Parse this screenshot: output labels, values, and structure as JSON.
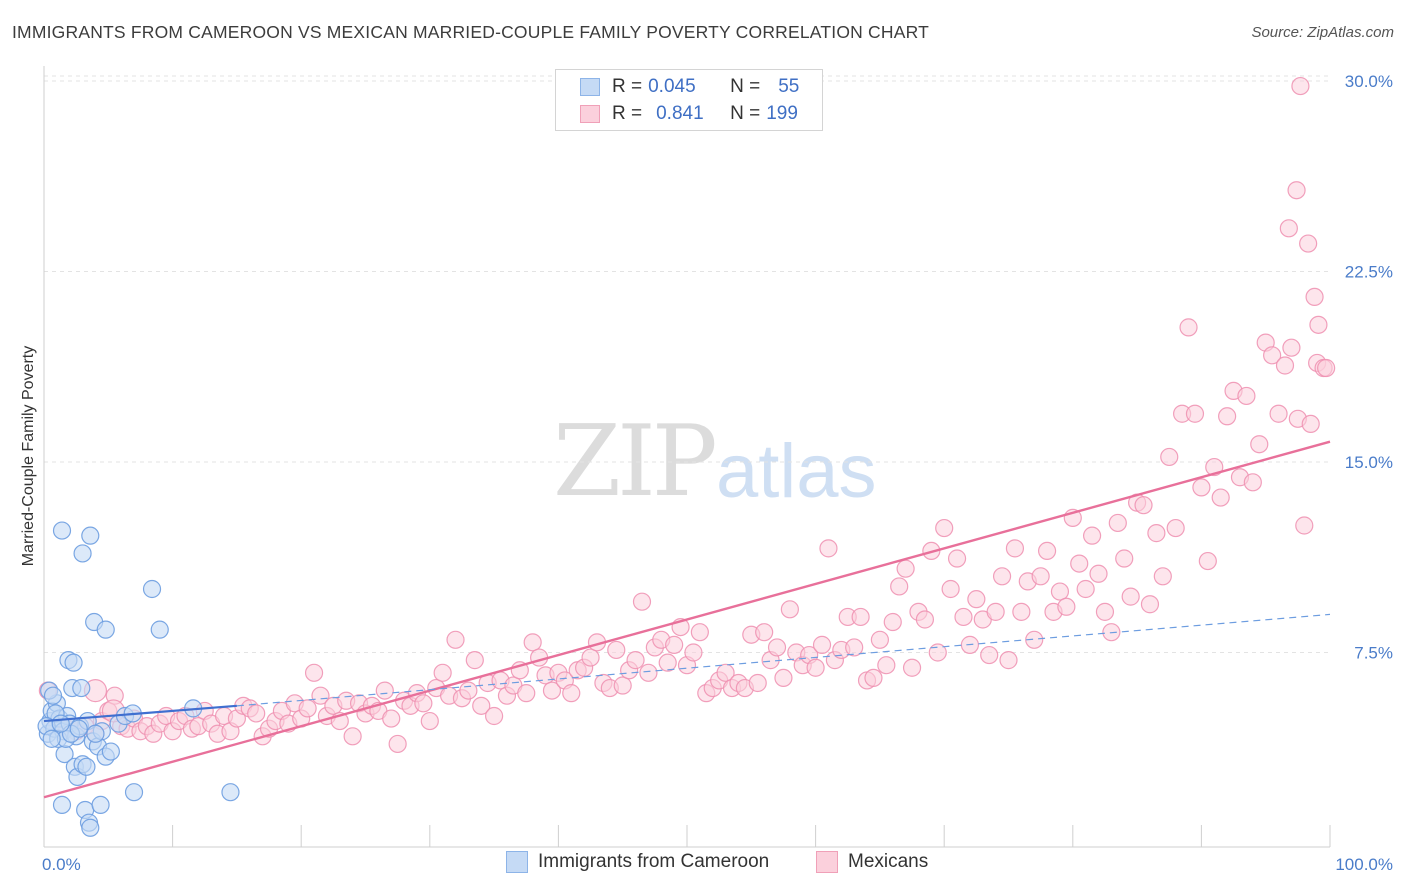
{
  "header": {
    "title": "IMMIGRANTS FROM CAMEROON VS MEXICAN MARRIED-COUPLE FAMILY POVERTY CORRELATION CHART",
    "source": "Source: ZipAtlas.com"
  },
  "watermark": {
    "zip": "ZIP",
    "atlas": "atlas"
  },
  "legend": {
    "rows": [
      {
        "r_label": "R =",
        "r_value": "0.045",
        "n_label": "N =",
        "n_value": "55",
        "color": "#8db4e8",
        "fill": "#c5daf5"
      },
      {
        "r_label": "R =",
        "r_value": "0.841",
        "n_label": "N =",
        "n_value": "199",
        "color": "#f0a0b8",
        "fill": "#fbd0dc"
      }
    ]
  },
  "bottom_legend": {
    "items": [
      {
        "label": "Immigrants from Cameroon",
        "color": "#8db4e8",
        "fill": "#c5daf5"
      },
      {
        "label": "Mexicans",
        "color": "#f0a0b8",
        "fill": "#fbd0dc"
      }
    ]
  },
  "chart_data": {
    "type": "scatter",
    "title": "IMMIGRANTS FROM CAMEROON VS MEXICAN MARRIED-COUPLE FAMILY POVERTY CORRELATION CHART",
    "ylabel": "Married-Couple Family Poverty",
    "xlabel": "",
    "xlim": [
      0,
      100
    ],
    "ylim": [
      0,
      30.5
    ],
    "x_tick_labels": [
      "0.0%",
      "100.0%"
    ],
    "y_ticks": [
      7.5,
      15.0,
      22.5,
      30.0
    ],
    "y_tick_labels": [
      "7.5%",
      "15.0%",
      "22.5%",
      "30.0%"
    ],
    "grid": true,
    "legend_position": "top-center",
    "series": [
      {
        "name": "Immigrants from Cameroon",
        "color": "#6d9de0",
        "fill": "#c5daf5",
        "trend": {
          "x": [
            0,
            15
          ],
          "y": [
            4.8,
            5.4
          ],
          "style": "solid"
        },
        "trend_extension": {
          "x": [
            15,
            100
          ],
          "y": [
            5.4,
            9.0
          ],
          "style": "dashed"
        },
        "points": [
          [
            0.3,
            4.3
          ],
          [
            0.5,
            4.8
          ],
          [
            0.6,
            5.2
          ],
          [
            0.8,
            4.5
          ],
          [
            1.0,
            5.5
          ],
          [
            0.4,
            6.0
          ],
          [
            1.2,
            4.9
          ],
          [
            1.5,
            4.4
          ],
          [
            0.7,
            5.8
          ],
          [
            1.8,
            5.0
          ],
          [
            2.0,
            4.7
          ],
          [
            2.2,
            6.1
          ],
          [
            2.5,
            4.2
          ],
          [
            2.8,
            4.6
          ],
          [
            1.6,
            3.5
          ],
          [
            1.9,
            7.2
          ],
          [
            2.3,
            7.1
          ],
          [
            2.4,
            3.0
          ],
          [
            2.6,
            2.6
          ],
          [
            3.0,
            3.1
          ],
          [
            3.2,
            1.3
          ],
          [
            3.5,
            0.8
          ],
          [
            3.6,
            0.6
          ],
          [
            1.4,
            1.5
          ],
          [
            1.4,
            12.3
          ],
          [
            3.0,
            11.4
          ],
          [
            3.6,
            12.1
          ],
          [
            3.9,
            8.7
          ],
          [
            4.8,
            8.4
          ],
          [
            8.4,
            10.0
          ],
          [
            9.0,
            8.4
          ],
          [
            3.8,
            4.0
          ],
          [
            4.2,
            3.8
          ],
          [
            4.5,
            4.4
          ],
          [
            4.8,
            3.4
          ],
          [
            5.2,
            3.6
          ],
          [
            3.3,
            3.0
          ],
          [
            2.9,
            6.1
          ],
          [
            0.9,
            5.1
          ],
          [
            1.1,
            4.1
          ],
          [
            1.7,
            4.1
          ],
          [
            2.1,
            4.3
          ],
          [
            3.4,
            4.8
          ],
          [
            4.4,
            1.5
          ],
          [
            5.8,
            4.7
          ],
          [
            7.0,
            2.0
          ],
          [
            11.6,
            5.3
          ],
          [
            14.5,
            2.0
          ],
          [
            6.3,
            5.0
          ],
          [
            0.2,
            4.6
          ],
          [
            0.6,
            4.1
          ],
          [
            1.3,
            4.7
          ],
          [
            2.7,
            4.5
          ],
          [
            4.0,
            4.3
          ],
          [
            6.9,
            5.1
          ]
        ]
      },
      {
        "name": "Mexicans",
        "color": "#ef8fb0",
        "fill": "#fbd0dc",
        "trend": {
          "x": [
            0,
            100
          ],
          "y": [
            1.8,
            15.8
          ],
          "style": "solid"
        },
        "points": [
          [
            0.3,
            6.0
          ],
          [
            1.0,
            4.7
          ],
          [
            1.8,
            4.5
          ],
          [
            2.5,
            4.4
          ],
          [
            3.2,
            4.6
          ],
          [
            4.0,
            4.3
          ],
          [
            4.5,
            4.8
          ],
          [
            6.0,
            4.6
          ],
          [
            5.0,
            5.2
          ],
          [
            5.5,
            5.8
          ],
          [
            6.5,
            4.5
          ],
          [
            7.0,
            4.9
          ],
          [
            7.5,
            4.4
          ],
          [
            8.0,
            4.6
          ],
          [
            8.5,
            4.3
          ],
          [
            9.0,
            4.7
          ],
          [
            9.5,
            5.0
          ],
          [
            10.0,
            4.4
          ],
          [
            10.5,
            4.8
          ],
          [
            11.0,
            5.0
          ],
          [
            11.5,
            4.5
          ],
          [
            12.0,
            4.6
          ],
          [
            12.5,
            5.2
          ],
          [
            13.0,
            4.7
          ],
          [
            13.5,
            4.3
          ],
          [
            14.0,
            5.0
          ],
          [
            14.5,
            4.4
          ],
          [
            15.0,
            4.9
          ],
          [
            15.5,
            5.4
          ],
          [
            16.0,
            5.3
          ],
          [
            16.5,
            5.1
          ],
          [
            17.0,
            4.2
          ],
          [
            17.5,
            4.5
          ],
          [
            18.0,
            4.8
          ],
          [
            18.5,
            5.2
          ],
          [
            19.0,
            4.7
          ],
          [
            19.5,
            5.5
          ],
          [
            20.0,
            4.9
          ],
          [
            20.5,
            5.3
          ],
          [
            21.0,
            6.7
          ],
          [
            21.5,
            5.8
          ],
          [
            22.0,
            5.0
          ],
          [
            22.5,
            5.4
          ],
          [
            23.0,
            4.8
          ],
          [
            23.5,
            5.6
          ],
          [
            24.0,
            4.2
          ],
          [
            24.5,
            5.5
          ],
          [
            25.0,
            5.1
          ],
          [
            25.5,
            5.4
          ],
          [
            26.0,
            5.2
          ],
          [
            26.5,
            6.0
          ],
          [
            27.0,
            4.9
          ],
          [
            27.5,
            3.9
          ],
          [
            28.0,
            5.6
          ],
          [
            28.5,
            5.4
          ],
          [
            29.0,
            5.9
          ],
          [
            29.5,
            5.5
          ],
          [
            30.0,
            4.8
          ],
          [
            30.5,
            6.1
          ],
          [
            31.0,
            6.7
          ],
          [
            31.5,
            5.8
          ],
          [
            32.0,
            8.0
          ],
          [
            32.5,
            5.7
          ],
          [
            33.0,
            6.0
          ],
          [
            33.5,
            7.2
          ],
          [
            34.0,
            5.4
          ],
          [
            34.5,
            6.3
          ],
          [
            35.0,
            5.0
          ],
          [
            35.5,
            6.4
          ],
          [
            36.0,
            5.8
          ],
          [
            36.5,
            6.2
          ],
          [
            37.0,
            6.8
          ],
          [
            37.5,
            5.9
          ],
          [
            38.0,
            7.9
          ],
          [
            38.5,
            7.3
          ],
          [
            39.0,
            6.6
          ],
          [
            39.5,
            6.0
          ],
          [
            40.0,
            6.7
          ],
          [
            40.5,
            6.4
          ],
          [
            41.0,
            5.9
          ],
          [
            41.5,
            6.8
          ],
          [
            42.0,
            6.9
          ],
          [
            42.5,
            7.3
          ],
          [
            43.0,
            7.9
          ],
          [
            43.5,
            6.3
          ],
          [
            44.0,
            6.1
          ],
          [
            44.5,
            7.6
          ],
          [
            45.0,
            6.2
          ],
          [
            45.5,
            6.8
          ],
          [
            46.0,
            7.2
          ],
          [
            46.5,
            9.5
          ],
          [
            47.0,
            6.7
          ],
          [
            47.5,
            7.7
          ],
          [
            48.0,
            8.0
          ],
          [
            48.5,
            7.1
          ],
          [
            49.0,
            7.8
          ],
          [
            49.5,
            8.5
          ],
          [
            50.0,
            7.0
          ],
          [
            50.5,
            7.5
          ],
          [
            51.0,
            8.3
          ],
          [
            51.5,
            5.9
          ],
          [
            52.0,
            6.1
          ],
          [
            52.5,
            6.4
          ],
          [
            53.0,
            6.7
          ],
          [
            53.5,
            6.1
          ],
          [
            54.0,
            6.3
          ],
          [
            54.5,
            6.1
          ],
          [
            55.0,
            8.2
          ],
          [
            55.5,
            6.3
          ],
          [
            56.0,
            8.3
          ],
          [
            56.5,
            7.2
          ],
          [
            57.0,
            7.7
          ],
          [
            57.5,
            6.5
          ],
          [
            58.0,
            9.2
          ],
          [
            58.5,
            7.5
          ],
          [
            59.0,
            7.0
          ],
          [
            59.5,
            7.4
          ],
          [
            60.0,
            6.9
          ],
          [
            60.5,
            7.8
          ],
          [
            61.0,
            11.6
          ],
          [
            61.5,
            7.2
          ],
          [
            62.0,
            7.6
          ],
          [
            62.5,
            8.9
          ],
          [
            63.0,
            7.7
          ],
          [
            63.5,
            8.9
          ],
          [
            64.0,
            6.4
          ],
          [
            64.5,
            6.5
          ],
          [
            65.0,
            8.0
          ],
          [
            65.5,
            7.0
          ],
          [
            66.0,
            8.7
          ],
          [
            66.5,
            10.1
          ],
          [
            67.0,
            10.8
          ],
          [
            67.5,
            6.9
          ],
          [
            68.0,
            9.1
          ],
          [
            68.5,
            8.8
          ],
          [
            69.0,
            11.5
          ],
          [
            69.5,
            7.5
          ],
          [
            70.0,
            12.4
          ],
          [
            70.5,
            10.0
          ],
          [
            71.0,
            11.2
          ],
          [
            71.5,
            8.9
          ],
          [
            72.0,
            7.8
          ],
          [
            72.5,
            9.6
          ],
          [
            73.0,
            8.8
          ],
          [
            73.5,
            7.4
          ],
          [
            74.0,
            9.1
          ],
          [
            74.5,
            10.5
          ],
          [
            75.0,
            7.2
          ],
          [
            75.5,
            11.6
          ],
          [
            76.0,
            9.1
          ],
          [
            76.5,
            10.3
          ],
          [
            77.0,
            8.0
          ],
          [
            77.5,
            10.5
          ],
          [
            78.0,
            11.5
          ],
          [
            78.5,
            9.1
          ],
          [
            79.0,
            9.9
          ],
          [
            79.5,
            9.3
          ],
          [
            80.0,
            12.8
          ],
          [
            80.5,
            11.0
          ],
          [
            81.0,
            10.0
          ],
          [
            81.5,
            12.1
          ],
          [
            82.0,
            10.6
          ],
          [
            82.5,
            9.1
          ],
          [
            83.0,
            8.3
          ],
          [
            83.5,
            12.6
          ],
          [
            84.0,
            11.2
          ],
          [
            84.5,
            9.7
          ],
          [
            85.0,
            13.4
          ],
          [
            85.5,
            13.3
          ],
          [
            86.0,
            9.4
          ],
          [
            86.5,
            12.2
          ],
          [
            87.0,
            10.5
          ],
          [
            87.5,
            15.2
          ],
          [
            88.0,
            12.4
          ],
          [
            88.5,
            16.9
          ],
          [
            89.0,
            20.3
          ],
          [
            89.5,
            16.9
          ],
          [
            90.0,
            14.0
          ],
          [
            90.5,
            11.1
          ],
          [
            91.0,
            14.8
          ],
          [
            91.5,
            13.6
          ],
          [
            92.0,
            16.8
          ],
          [
            92.5,
            17.8
          ],
          [
            93.0,
            14.4
          ],
          [
            93.5,
            17.6
          ],
          [
            94.0,
            14.2
          ],
          [
            94.5,
            15.7
          ],
          [
            95.0,
            19.7
          ],
          [
            95.5,
            19.2
          ],
          [
            96.0,
            16.9
          ],
          [
            96.5,
            18.8
          ],
          [
            97.0,
            19.5
          ],
          [
            97.5,
            16.7
          ],
          [
            98.0,
            12.5
          ],
          [
            98.5,
            16.5
          ],
          [
            99.0,
            18.9
          ],
          [
            99.5,
            18.7
          ]
        ],
        "high_points": [
          [
            97.4,
            25.7
          ],
          [
            96.8,
            24.2
          ],
          [
            98.3,
            23.6
          ],
          [
            98.8,
            21.5
          ],
          [
            99.1,
            20.4
          ],
          [
            99.7,
            18.7
          ],
          [
            97.7,
            29.8
          ]
        ]
      }
    ]
  }
}
